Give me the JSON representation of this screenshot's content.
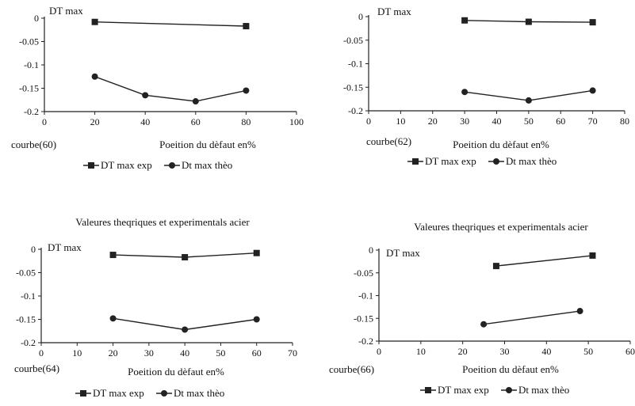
{
  "chart_data": [
    {
      "type": "line",
      "title": "",
      "ylabel": "DT max",
      "xlabel": "Poeition du dèfaut en%",
      "curve_label": "courbe(60)",
      "xlim": [
        0,
        100
      ],
      "ylim": [
        -0.2,
        0
      ],
      "x_ticks": [
        "0",
        "20",
        "40",
        "60",
        "80",
        "100"
      ],
      "y_ticks": [
        "0",
        "-0.05",
        "-0.1",
        "-0.15",
        "-0.2"
      ],
      "grid": false,
      "legend_position": "bottom",
      "series": [
        {
          "name": "DT max exp",
          "marker": "square",
          "x": [
            20,
            80
          ],
          "y": [
            -0.008,
            -0.017
          ]
        },
        {
          "name": "Dt max thèo",
          "marker": "circle",
          "x": [
            20,
            40,
            60,
            80
          ],
          "y": [
            -0.125,
            -0.165,
            -0.178,
            -0.155
          ]
        }
      ]
    },
    {
      "type": "line",
      "title": "",
      "ylabel": "DT max",
      "xlabel": "Poeition du dèfaut en%",
      "curve_label": "courbe(62)",
      "xlim": [
        0,
        80
      ],
      "ylim": [
        -0.2,
        0
      ],
      "x_ticks": [
        "0",
        "10",
        "20",
        "30",
        "40",
        "50",
        "60",
        "70",
        "80"
      ],
      "y_ticks": [
        "0",
        "-0.05",
        "-0.1",
        "-0.15",
        "-0.2"
      ],
      "grid": false,
      "legend_position": "bottom",
      "series": [
        {
          "name": "DT max exp",
          "marker": "square",
          "x": [
            30,
            50,
            70
          ],
          "y": [
            -0.008,
            -0.011,
            -0.012
          ]
        },
        {
          "name": "Dt max thèo",
          "marker": "circle",
          "x": [
            30,
            50,
            70
          ],
          "y": [
            -0.16,
            -0.178,
            -0.157
          ]
        }
      ]
    },
    {
      "type": "line",
      "title": "Valeures theqriques et experimentals acier",
      "ylabel": "DT max",
      "xlabel": "Poeition du dèfaut en%",
      "curve_label": "courbe(64)",
      "xlim": [
        0,
        70
      ],
      "ylim": [
        -0.2,
        0
      ],
      "x_ticks": [
        "0",
        "10",
        "20",
        "30",
        "40",
        "50",
        "60",
        "70"
      ],
      "y_ticks": [
        "0",
        "-0.05",
        "-0.1",
        "-0.15",
        "-0.2"
      ],
      "grid": false,
      "legend_position": "bottom",
      "series": [
        {
          "name": "DT max exp",
          "marker": "square",
          "x": [
            20,
            40,
            60
          ],
          "y": [
            -0.012,
            -0.017,
            -0.008
          ]
        },
        {
          "name": "Dt max thèo",
          "marker": "circle",
          "x": [
            20,
            40,
            60
          ],
          "y": [
            -0.148,
            -0.172,
            -0.15
          ]
        }
      ]
    },
    {
      "type": "line",
      "title": "Valeures theqriques et experimentals acier",
      "ylabel": "DT max",
      "xlabel": "Poeition du dèfaut en%",
      "curve_label": "courbe(66)",
      "xlim": [
        0,
        60
      ],
      "ylim": [
        -0.2,
        0
      ],
      "x_ticks": [
        "0",
        "10",
        "20",
        "30",
        "40",
        "50",
        "60"
      ],
      "y_ticks": [
        "0",
        "-0.05",
        "-0.1",
        "-0.15",
        "-0.2"
      ],
      "grid": false,
      "legend_position": "bottom",
      "series": [
        {
          "name": "DT max exp",
          "marker": "square",
          "x": [
            28,
            51
          ],
          "y": [
            -0.035,
            -0.012
          ]
        },
        {
          "name": "Dt max thèo",
          "marker": "circle",
          "x": [
            25,
            48
          ],
          "y": [
            -0.163,
            -0.134
          ]
        }
      ]
    }
  ]
}
